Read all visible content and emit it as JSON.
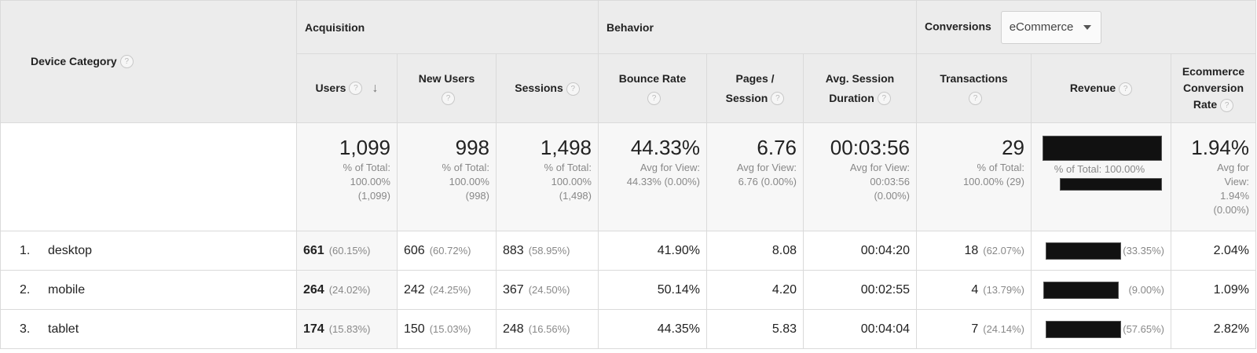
{
  "dimension": {
    "label": "Device Category"
  },
  "groups": {
    "acquisition": "Acquisition",
    "behavior": "Behavior",
    "conversions": "Conversions",
    "conversions_select": "eCommerce"
  },
  "columns": {
    "users": "Users",
    "new_users": "New Users",
    "sessions": "Sessions",
    "bounce_rate": "Bounce Rate",
    "pages_session_1": "Pages /",
    "pages_session_2": "Session",
    "avg_dur_1": "Avg. Session",
    "avg_dur_2": "Duration",
    "transactions": "Transactions",
    "revenue": "Revenue",
    "ecr_1": "Ecommerce",
    "ecr_2": "Conversion",
    "ecr_3": "Rate"
  },
  "totals": {
    "users": {
      "value": "1,099",
      "sub": [
        "% of Total:",
        "100.00%",
        "(1,099)"
      ]
    },
    "new_users": {
      "value": "998",
      "sub": [
        "% of Total:",
        "100.00%",
        "(998)"
      ]
    },
    "sessions": {
      "value": "1,498",
      "sub": [
        "% of Total:",
        "100.00%",
        "(1,498)"
      ]
    },
    "bounce_rate": {
      "value": "44.33%",
      "sub": [
        "Avg for View:",
        "44.33% (0.00%)"
      ]
    },
    "pages_session": {
      "value": "6.76",
      "sub": [
        "Avg for View:",
        "6.76 (0.00%)"
      ]
    },
    "avg_duration": {
      "value": "00:03:56",
      "sub": [
        "Avg for View:",
        "00:03:56",
        "(0.00%)"
      ]
    },
    "transactions": {
      "value": "29",
      "sub": [
        "% of Total:",
        "100.00% (29)"
      ]
    },
    "revenue": {
      "sub": [
        "% of Total: 100.00%"
      ]
    },
    "ecr": {
      "value": "1.94%",
      "sub": [
        "Avg for",
        "View:",
        "1.94%",
        "(0.00%)"
      ]
    }
  },
  "rows": [
    {
      "index": "1.",
      "device": "desktop",
      "users": "661",
      "users_pct": "(60.15%)",
      "new_users": "606",
      "new_users_pct": "(60.72%)",
      "sessions": "883",
      "sessions_pct": "(58.95%)",
      "bounce_rate": "41.90%",
      "pages_session": "8.08",
      "avg_duration": "00:04:20",
      "transactions": "18",
      "transactions_pct": "(62.07%)",
      "revenue_pct": "(33.35%)",
      "ecr": "2.04%"
    },
    {
      "index": "2.",
      "device": "mobile",
      "users": "264",
      "users_pct": "(24.02%)",
      "new_users": "242",
      "new_users_pct": "(24.25%)",
      "sessions": "367",
      "sessions_pct": "(24.50%)",
      "bounce_rate": "50.14%",
      "pages_session": "4.20",
      "avg_duration": "00:02:55",
      "transactions": "4",
      "transactions_pct": "(13.79%)",
      "revenue_pct": "(9.00%)",
      "ecr": "1.09%"
    },
    {
      "index": "3.",
      "device": "tablet",
      "users": "174",
      "users_pct": "(15.83%)",
      "new_users": "150",
      "new_users_pct": "(15.03%)",
      "sessions": "248",
      "sessions_pct": "(16.56%)",
      "bounce_rate": "44.35%",
      "pages_session": "5.83",
      "avg_duration": "00:04:04",
      "transactions": "7",
      "transactions_pct": "(24.14%)",
      "revenue_pct": "(57.65%)",
      "ecr": "2.82%"
    }
  ],
  "icons": {
    "help": "question-mark-icon",
    "sort": "arrow-down-icon",
    "dropdown": "caret-down-icon"
  },
  "help_glyph": "?",
  "sort_glyph": "↓"
}
